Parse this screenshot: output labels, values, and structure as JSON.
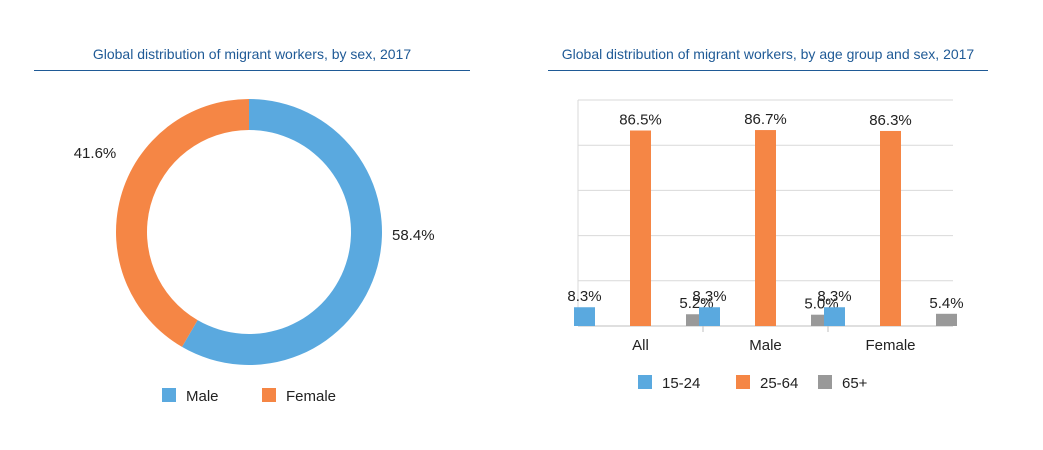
{
  "colors": {
    "blue": "#5aa9df",
    "orange": "#f58645",
    "gray": "#999999",
    "title": "#1f5a96"
  },
  "chart_data": [
    {
      "type": "pie",
      "title": "Global distribution of migrant workers, by sex, 2017",
      "donut": true,
      "slices": [
        {
          "name": "Male",
          "value": 58.4,
          "label": "58.4%",
          "color": "#5aa9df"
        },
        {
          "name": "Female",
          "value": 41.6,
          "label": "41.6%",
          "color": "#f58645"
        }
      ],
      "legend": [
        "Male",
        "Female"
      ],
      "legend_position": "bottom"
    },
    {
      "type": "bar",
      "title": "Global distribution of migrant workers, by age group and sex, 2017",
      "categories": [
        "All",
        "Male",
        "Female"
      ],
      "series": [
        {
          "name": "15-24",
          "color": "#5aa9df",
          "values": [
            8.3,
            8.3,
            8.3
          ],
          "labels": [
            "8.3%",
            "8.3%",
            "8.3%"
          ]
        },
        {
          "name": "25-64",
          "color": "#f58645",
          "values": [
            86.5,
            86.7,
            86.3
          ],
          "labels": [
            "86.5%",
            "86.7%",
            "86.3%"
          ]
        },
        {
          "name": "65+",
          "color": "#999999",
          "values": [
            5.2,
            5.0,
            5.4
          ],
          "labels": [
            "5.2%",
            "5.0%",
            "5.4%"
          ]
        }
      ],
      "ylim": [
        0,
        100
      ],
      "grid": true,
      "legend_position": "bottom"
    }
  ]
}
